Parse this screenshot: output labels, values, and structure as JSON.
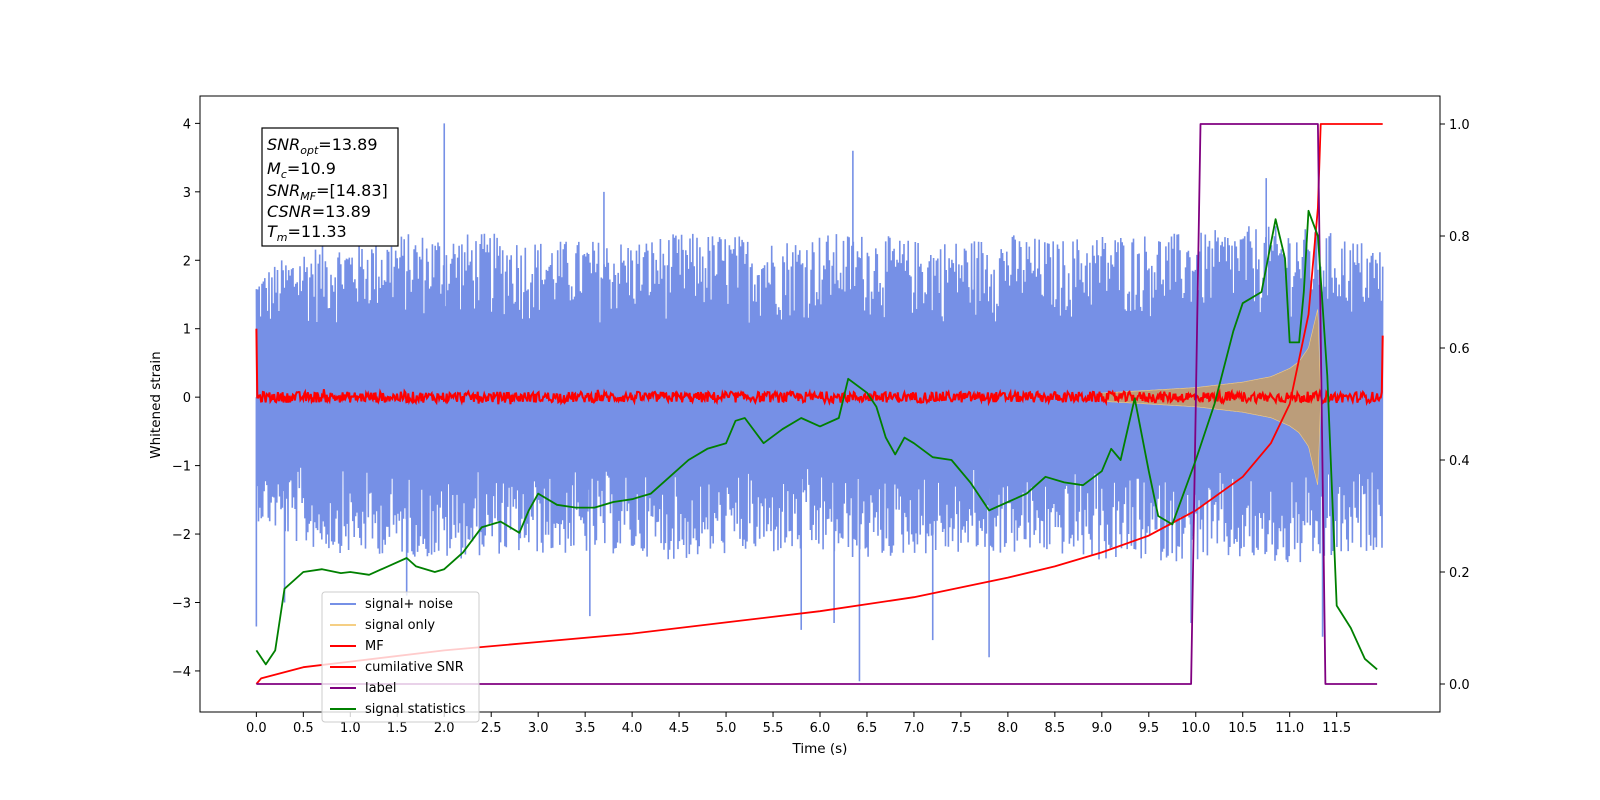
{
  "chart_data": {
    "type": "line",
    "xlabel": "Time (s)",
    "ylabel": "Whitened strain",
    "xlim": [
      -0.6,
      12.6
    ],
    "ylim": [
      -4.6,
      4.4
    ],
    "ylim_right": [
      -0.05,
      1.05
    ],
    "xticks": [
      0.0,
      0.5,
      1.0,
      1.5,
      2.0,
      2.5,
      3.0,
      3.5,
      4.0,
      4.5,
      5.0,
      5.5,
      6.0,
      6.5,
      7.0,
      7.5,
      8.0,
      8.5,
      9.0,
      9.5,
      10.0,
      10.5,
      11.0,
      11.5
    ],
    "yticks": [
      -4,
      -3,
      -2,
      -1,
      0,
      1,
      2,
      3,
      4
    ],
    "yticks_right": [
      0.0,
      0.2,
      0.4,
      0.6,
      0.8,
      1.0
    ],
    "grid": false,
    "legend_placement": "lower-left",
    "annotations": [
      {
        "base": "SNR",
        "sub": "opt",
        "rest": "=13.89"
      },
      {
        "base": "M",
        "sub": "c",
        "rest": "=10.9"
      },
      {
        "base": "SNR",
        "sub": "MF",
        "rest": "=[14.83]"
      },
      {
        "base": "CSNR",
        "sub": "",
        "rest": "=13.89"
      },
      {
        "base": "T",
        "sub": "m",
        "rest": "=11.33"
      }
    ],
    "series": [
      {
        "name": "signal+ noise",
        "color": "#7690e6",
        "axis": "left",
        "envelope_upper": [
          [
            0.0,
            1.8
          ],
          [
            0.5,
            2.2
          ],
          [
            1.0,
            2.3
          ],
          [
            1.5,
            2.4
          ],
          [
            2.0,
            2.4
          ],
          [
            2.5,
            2.4
          ],
          [
            3.0,
            2.3
          ],
          [
            3.5,
            2.3
          ],
          [
            4.0,
            2.3
          ],
          [
            4.5,
            2.4
          ],
          [
            5.0,
            2.4
          ],
          [
            5.5,
            2.3
          ],
          [
            6.0,
            2.4
          ],
          [
            6.5,
            2.4
          ],
          [
            7.0,
            2.3
          ],
          [
            7.5,
            2.3
          ],
          [
            8.0,
            2.4
          ],
          [
            8.5,
            2.3
          ],
          [
            9.0,
            2.4
          ],
          [
            9.5,
            2.4
          ],
          [
            10.0,
            2.4
          ],
          [
            10.5,
            2.5
          ],
          [
            11.0,
            2.5
          ],
          [
            11.5,
            2.4
          ],
          [
            11.99,
            2.2
          ]
        ],
        "envelope_lower": [
          [
            0.0,
            -1.8
          ],
          [
            0.5,
            -2.2
          ],
          [
            1.0,
            -2.3
          ],
          [
            1.5,
            -2.3
          ],
          [
            2.0,
            -2.4
          ],
          [
            2.5,
            -2.3
          ],
          [
            3.0,
            -2.3
          ],
          [
            3.5,
            -2.3
          ],
          [
            4.0,
            -2.3
          ],
          [
            4.5,
            -2.4
          ],
          [
            5.0,
            -2.3
          ],
          [
            5.5,
            -2.3
          ],
          [
            6.0,
            -2.3
          ],
          [
            6.5,
            -2.4
          ],
          [
            7.0,
            -2.3
          ],
          [
            7.5,
            -2.3
          ],
          [
            8.0,
            -2.3
          ],
          [
            8.5,
            -2.3
          ],
          [
            9.0,
            -2.4
          ],
          [
            9.5,
            -2.4
          ],
          [
            10.0,
            -2.4
          ],
          [
            10.5,
            -2.4
          ],
          [
            11.0,
            -2.5
          ],
          [
            11.5,
            -2.4
          ],
          [
            11.99,
            -2.2
          ]
        ],
        "spikes": [
          [
            0.0,
            -3.35
          ],
          [
            2.0,
            4.0
          ],
          [
            6.35,
            3.6
          ],
          [
            6.42,
            -4.15
          ],
          [
            5.8,
            -3.4
          ],
          [
            6.15,
            -3.3
          ],
          [
            7.2,
            -3.55
          ],
          [
            7.8,
            -3.8
          ],
          [
            3.55,
            -3.2
          ],
          [
            9.95,
            -3.3
          ],
          [
            11.35,
            -3.5
          ],
          [
            0.3,
            -3.0
          ],
          [
            1.6,
            -2.9
          ],
          [
            3.7,
            3.0
          ],
          [
            10.75,
            3.2
          ]
        ]
      },
      {
        "name": "signal only",
        "color": "#f5cf84",
        "axis": "left",
        "fill_color": "#bf9e74",
        "amplitude": [
          [
            9.0,
            0.06
          ],
          [
            9.5,
            0.1
          ],
          [
            10.0,
            0.14
          ],
          [
            10.5,
            0.22
          ],
          [
            10.8,
            0.3
          ],
          [
            11.0,
            0.42
          ],
          [
            11.1,
            0.52
          ],
          [
            11.2,
            0.72
          ],
          [
            11.3,
            1.3
          ],
          [
            11.33,
            0.0
          ]
        ]
      },
      {
        "name": "MF",
        "color": "#ff0000",
        "axis": "left",
        "values": [
          [
            0.0,
            1.0
          ],
          [
            0.02,
            0.05
          ],
          [
            11.98,
            0.0
          ],
          [
            11.99,
            0.9
          ]
        ]
      },
      {
        "name": "cumilative SNR",
        "color": "#ff0000",
        "axis": "right",
        "values": [
          [
            0.0,
            0.0
          ],
          [
            0.05,
            0.01
          ],
          [
            0.5,
            0.03
          ],
          [
            1.0,
            0.04
          ],
          [
            2.0,
            0.06
          ],
          [
            3.0,
            0.075
          ],
          [
            4.0,
            0.09
          ],
          [
            5.0,
            0.11
          ],
          [
            6.0,
            0.13
          ],
          [
            7.0,
            0.155
          ],
          [
            8.0,
            0.19
          ],
          [
            8.5,
            0.21
          ],
          [
            9.0,
            0.235
          ],
          [
            9.5,
            0.265
          ],
          [
            10.0,
            0.31
          ],
          [
            10.5,
            0.37
          ],
          [
            10.8,
            0.43
          ],
          [
            11.0,
            0.5
          ],
          [
            11.2,
            0.66
          ],
          [
            11.3,
            0.85
          ],
          [
            11.33,
            1.0
          ],
          [
            11.99,
            1.0
          ]
        ]
      },
      {
        "name": "label",
        "color": "#800080",
        "axis": "right",
        "values": [
          [
            0.0,
            0.0
          ],
          [
            9.95,
            0.0
          ],
          [
            10.05,
            1.0
          ],
          [
            11.3,
            1.0
          ],
          [
            11.38,
            0.0
          ],
          [
            11.93,
            0.0
          ]
        ]
      },
      {
        "name": "signal statistics",
        "color": "#008000",
        "axis": "right",
        "values": [
          [
            0.0,
            0.06
          ],
          [
            0.1,
            0.035
          ],
          [
            0.2,
            0.06
          ],
          [
            0.3,
            0.17
          ],
          [
            0.5,
            0.2
          ],
          [
            0.7,
            0.205
          ],
          [
            0.9,
            0.198
          ],
          [
            1.0,
            0.2
          ],
          [
            1.2,
            0.195
          ],
          [
            1.4,
            0.21
          ],
          [
            1.6,
            0.225
          ],
          [
            1.7,
            0.21
          ],
          [
            1.9,
            0.2
          ],
          [
            2.0,
            0.205
          ],
          [
            2.2,
            0.235
          ],
          [
            2.4,
            0.28
          ],
          [
            2.6,
            0.29
          ],
          [
            2.8,
            0.27
          ],
          [
            2.9,
            0.31
          ],
          [
            3.0,
            0.34
          ],
          [
            3.2,
            0.32
          ],
          [
            3.4,
            0.315
          ],
          [
            3.6,
            0.315
          ],
          [
            3.8,
            0.325
          ],
          [
            4.0,
            0.33
          ],
          [
            4.2,
            0.34
          ],
          [
            4.4,
            0.37
          ],
          [
            4.6,
            0.4
          ],
          [
            4.8,
            0.42
          ],
          [
            5.0,
            0.43
          ],
          [
            5.1,
            0.47
          ],
          [
            5.2,
            0.475
          ],
          [
            5.4,
            0.43
          ],
          [
            5.6,
            0.455
          ],
          [
            5.8,
            0.475
          ],
          [
            6.0,
            0.46
          ],
          [
            6.2,
            0.475
          ],
          [
            6.3,
            0.545
          ],
          [
            6.5,
            0.52
          ],
          [
            6.6,
            0.495
          ],
          [
            6.7,
            0.44
          ],
          [
            6.8,
            0.41
          ],
          [
            6.9,
            0.44
          ],
          [
            7.0,
            0.43
          ],
          [
            7.2,
            0.405
          ],
          [
            7.4,
            0.4
          ],
          [
            7.6,
            0.36
          ],
          [
            7.8,
            0.31
          ],
          [
            8.0,
            0.325
          ],
          [
            8.2,
            0.34
          ],
          [
            8.4,
            0.37
          ],
          [
            8.6,
            0.36
          ],
          [
            8.8,
            0.355
          ],
          [
            9.0,
            0.38
          ],
          [
            9.1,
            0.42
          ],
          [
            9.2,
            0.4
          ],
          [
            9.35,
            0.51
          ],
          [
            9.5,
            0.38
          ],
          [
            9.6,
            0.3
          ],
          [
            9.75,
            0.285
          ],
          [
            10.0,
            0.4
          ],
          [
            10.2,
            0.5
          ],
          [
            10.4,
            0.63
          ],
          [
            10.5,
            0.68
          ],
          [
            10.7,
            0.7
          ],
          [
            10.85,
            0.83
          ],
          [
            10.95,
            0.76
          ],
          [
            11.0,
            0.61
          ],
          [
            11.1,
            0.61
          ],
          [
            11.15,
            0.7
          ],
          [
            11.2,
            0.845
          ],
          [
            11.3,
            0.8
          ],
          [
            11.4,
            0.55
          ],
          [
            11.5,
            0.14
          ],
          [
            11.65,
            0.1
          ],
          [
            11.8,
            0.045
          ],
          [
            11.93,
            0.026
          ]
        ]
      }
    ]
  }
}
